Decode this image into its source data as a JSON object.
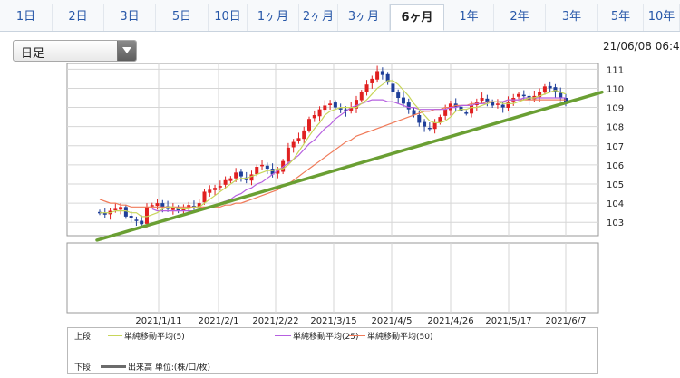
{
  "tabs": [
    "1日",
    "2日",
    "3日",
    "5日",
    "10日",
    "1ヶ月",
    "2ヶ月",
    "3ヶ月",
    "6ヶ月",
    "1年",
    "2年",
    "3年",
    "5年",
    "10年"
  ],
  "active_tab": "6ヶ月",
  "select": {
    "value": "日足"
  },
  "datetime": "21/06/08 06:4",
  "legend": {
    "upper_label": "上段:",
    "lower_label": "下段:",
    "ma5": "単純移動平均(5)",
    "ma25": "単純移動平均(25)",
    "ma50": "単純移動平均(50)",
    "volume": "出来高 単位:(株/口/枚)",
    "ma5_color": "#c8d65a",
    "ma25_color": "#b660e0",
    "ma50_color": "#f07b5a",
    "volume_color": "#6b6b6b"
  },
  "chart_data": {
    "type": "candlestick",
    "y_ticks": [
      103,
      104,
      105,
      106,
      107,
      108,
      109,
      110,
      111
    ],
    "ylim": [
      102.3,
      111.3
    ],
    "x_tick_labels": [
      "2021/1/11",
      "2021/2/1",
      "2021/2/22",
      "2021/3/15",
      "2021/4/5",
      "2021/4/26",
      "2021/5/17",
      "2021/6/7"
    ],
    "up_color": "#e02020",
    "down_color": "#1f3f99",
    "trendline": {
      "start": [
        "2020/12/30",
        102.4
      ],
      "end": [
        "2021/6/8",
        109.8
      ],
      "color": "#6a9f33"
    },
    "closes": [
      103.5,
      103.4,
      103.6,
      103.7,
      103.8,
      103.3,
      103.2,
      103.1,
      102.9,
      103.8,
      103.9,
      104.0,
      103.8,
      103.7,
      103.8,
      103.6,
      103.7,
      103.9,
      103.8,
      104.0,
      104.6,
      104.7,
      104.8,
      104.9,
      105.2,
      105.3,
      105.6,
      105.4,
      105.2,
      105.5,
      105.9,
      106.0,
      105.8,
      105.5,
      105.7,
      106.2,
      106.9,
      107.2,
      107.4,
      107.8,
      108.4,
      108.6,
      108.9,
      109.1,
      109.2,
      109.0,
      108.9,
      108.8,
      109.0,
      109.4,
      109.8,
      110.2,
      110.5,
      110.9,
      110.7,
      110.3,
      109.8,
      109.5,
      109.2,
      108.9,
      108.6,
      108.2,
      108.0,
      107.9,
      108.2,
      108.5,
      108.9,
      109.2,
      109.0,
      108.8,
      108.7,
      109.1,
      109.3,
      109.5,
      109.3,
      109.1,
      109.2,
      109.0,
      109.3,
      109.5,
      109.7,
      109.6,
      109.4,
      109.6,
      109.8,
      110.1,
      110.0,
      109.8,
      109.5,
      109.3
    ],
    "ma5": [
      103.5,
      103.5,
      103.5,
      103.6,
      103.6,
      103.6,
      103.5,
      103.5,
      103.3,
      103.3,
      103.4,
      103.5,
      103.7,
      103.8,
      103.8,
      103.7,
      103.7,
      103.7,
      103.8,
      103.8,
      104.0,
      104.2,
      104.4,
      104.6,
      104.8,
      105.0,
      105.2,
      105.3,
      105.3,
      105.4,
      105.5,
      105.6,
      105.7,
      105.7,
      105.8,
      105.8,
      106.0,
      106.3,
      106.7,
      107.1,
      107.5,
      107.9,
      108.2,
      108.6,
      108.8,
      108.9,
      109.0,
      109.0,
      109.0,
      109.0,
      109.2,
      109.4,
      109.7,
      110.0,
      110.2,
      110.4,
      110.4,
      110.2,
      109.9,
      109.6,
      109.2,
      108.9,
      108.6,
      108.3,
      108.2,
      108.2,
      108.3,
      108.5,
      108.8,
      108.9,
      108.9,
      109.0,
      109.0,
      109.1,
      109.2,
      109.3,
      109.3,
      109.2,
      109.2,
      109.2,
      109.3,
      109.4,
      109.5,
      109.5,
      109.6,
      109.7,
      109.8,
      109.9,
      109.8,
      109.7
    ],
    "ma25_start_index": 10,
    "ma25": [
      103.7,
      103.6,
      103.6,
      103.6,
      103.6,
      103.6,
      103.6,
      103.6,
      103.6,
      103.7,
      103.7,
      103.8,
      103.9,
      104.0,
      104.1,
      104.2,
      104.4,
      104.5,
      104.7,
      104.8,
      105.0,
      105.1,
      105.3,
      105.5,
      105.7,
      105.9,
      106.1,
      106.3,
      106.5,
      106.8,
      107.1,
      107.3,
      107.6,
      107.9,
      108.1,
      108.4,
      108.6,
      108.8,
      109.0,
      109.1,
      109.2,
      109.3,
      109.4,
      109.4,
      109.4,
      109.3,
      109.3,
      109.2,
      109.1,
      109.0,
      109.0,
      108.9,
      108.9,
      108.9,
      108.9,
      108.9,
      108.9,
      109.0,
      109.0,
      109.1,
      109.1,
      109.1,
      109.2,
      109.2,
      109.2,
      109.3,
      109.3,
      109.3,
      109.4,
      109.4,
      109.4,
      109.5,
      109.5,
      109.5,
      109.5,
      109.5,
      109.5,
      109.5,
      109.5,
      109.5
    ],
    "ma50": [
      104.2,
      104.1,
      104.0,
      104.0,
      103.9,
      103.9,
      103.8,
      103.8,
      103.8,
      103.8,
      103.8,
      103.8,
      103.8,
      103.8,
      103.8,
      103.8,
      103.8,
      103.8,
      103.8,
      103.8,
      103.8,
      103.8,
      103.8,
      103.8,
      103.9,
      103.9,
      104.0,
      104.0,
      104.1,
      104.2,
      104.3,
      104.4,
      104.5,
      104.6,
      104.7,
      104.9,
      105.0,
      105.2,
      105.4,
      105.6,
      105.8,
      106.0,
      106.2,
      106.4,
      106.6,
      106.8,
      107.0,
      107.2,
      107.3,
      107.5,
      107.6,
      107.7,
      107.8,
      107.9,
      108.0,
      108.1,
      108.2,
      108.3,
      108.4,
      108.5,
      108.6,
      108.7,
      108.8,
      108.8,
      108.9,
      108.9,
      109.0,
      109.0,
      109.1,
      109.1,
      109.1,
      109.2,
      109.2,
      109.2,
      109.3,
      109.3,
      109.3,
      109.3,
      109.4,
      109.4,
      109.4,
      109.4,
      109.4,
      109.4,
      109.4,
      109.4,
      109.4,
      109.4,
      109.4,
      109.4
    ]
  }
}
